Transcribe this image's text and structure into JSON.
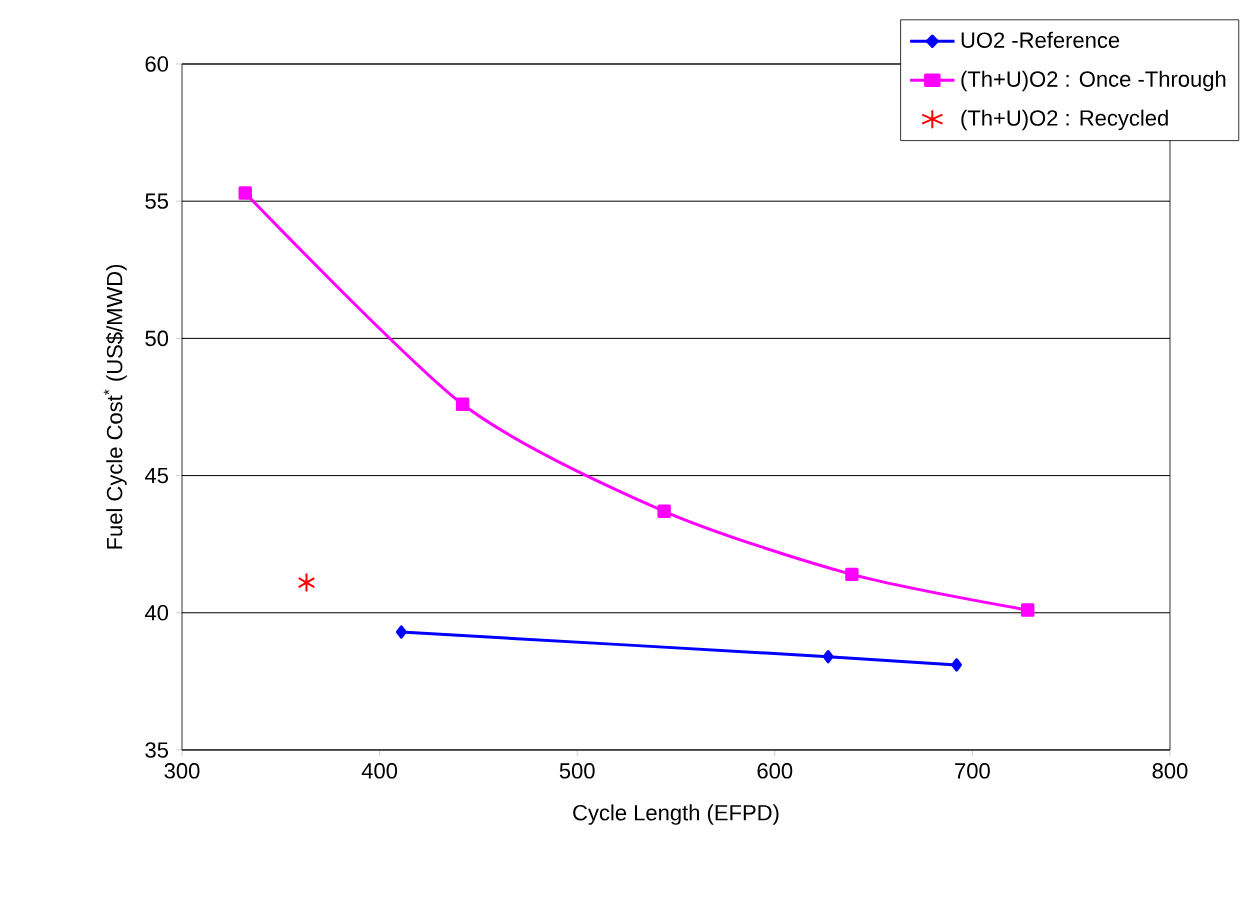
{
  "chart_data": {
    "type": "line",
    "xlabel": "Cycle Length (EFPD)",
    "ylabel": "Fuel Cycle Cost$^{*}$ (US$/MWD)",
    "xlim": [
      300,
      800
    ],
    "xticks": [
      300,
      400,
      500,
      600,
      700,
      800
    ],
    "ylim": [
      35,
      60
    ],
    "yticks": [
      35,
      40,
      45,
      50,
      55,
      60
    ],
    "grid": "y",
    "legend": "top right",
    "line_style": "solid",
    "series": [
      {
        "name": "UO2 -Reference",
        "color": "#0000ff",
        "marker": "diamond",
        "x": [
          411,
          627,
          692
        ],
        "values": [
          39.3,
          38.4,
          38.1
        ]
      },
      {
        "name": "(Th+U)O2 : Once -Through",
        "color": "#ff00ff",
        "marker": "square",
        "x": [
          332,
          442,
          544,
          639,
          728
        ],
        "values": [
          55.3,
          47.6,
          43.7,
          41.4,
          40.1
        ]
      },
      {
        "name": "(Th+U)O2 : Recycled",
        "type": "scatter",
        "color": "#ff0000",
        "marker": "cross",
        "x": [
          363
        ],
        "values": [
          41.1
        ]
      }
    ]
  }
}
